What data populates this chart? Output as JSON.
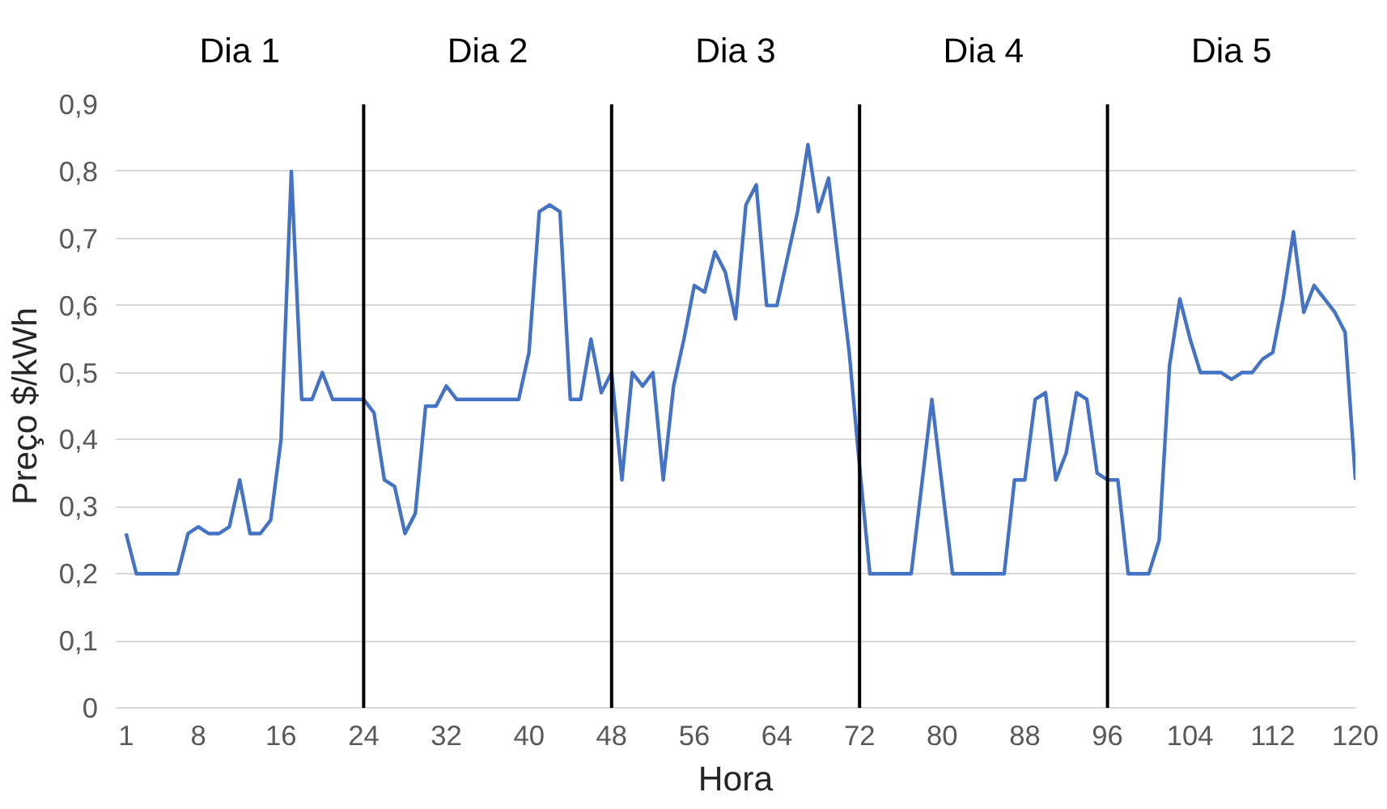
{
  "chart_data": {
    "type": "line",
    "xlabel": "Hora",
    "ylabel": "Preço $/kWh",
    "x": [
      1,
      2,
      3,
      4,
      5,
      6,
      7,
      8,
      9,
      10,
      11,
      12,
      13,
      14,
      15,
      16,
      17,
      18,
      19,
      20,
      21,
      22,
      23,
      24,
      25,
      26,
      27,
      28,
      29,
      30,
      31,
      32,
      33,
      34,
      35,
      36,
      37,
      38,
      39,
      40,
      41,
      42,
      43,
      44,
      45,
      46,
      47,
      48,
      49,
      50,
      51,
      52,
      53,
      54,
      55,
      56,
      57,
      58,
      59,
      60,
      61,
      62,
      63,
      64,
      65,
      66,
      67,
      68,
      69,
      70,
      71,
      72,
      73,
      74,
      75,
      76,
      77,
      78,
      79,
      80,
      81,
      82,
      83,
      84,
      85,
      86,
      87,
      88,
      89,
      90,
      91,
      92,
      93,
      94,
      95,
      96,
      97,
      98,
      99,
      100,
      101,
      102,
      103,
      104,
      105,
      106,
      107,
      108,
      109,
      110,
      111,
      112,
      113,
      114,
      115,
      116,
      117,
      118,
      119,
      120
    ],
    "series": [
      {
        "color": "#4472c4",
        "values": [
          0.26,
          0.2,
          0.2,
          0.2,
          0.2,
          0.2,
          0.26,
          0.27,
          0.26,
          0.26,
          0.27,
          0.34,
          0.26,
          0.26,
          0.28,
          0.4,
          0.8,
          0.46,
          0.46,
          0.5,
          0.46,
          0.46,
          0.46,
          0.46,
          0.44,
          0.34,
          0.33,
          0.26,
          0.29,
          0.45,
          0.45,
          0.48,
          0.46,
          0.46,
          0.46,
          0.46,
          0.46,
          0.46,
          0.46,
          0.53,
          0.74,
          0.75,
          0.74,
          0.46,
          0.46,
          0.55,
          0.47,
          0.5,
          0.34,
          0.5,
          0.48,
          0.5,
          0.34,
          0.48,
          0.55,
          0.63,
          0.62,
          0.68,
          0.65,
          0.58,
          0.75,
          0.78,
          0.6,
          0.6,
          0.67,
          0.74,
          0.84,
          0.74,
          0.79,
          0.66,
          0.53,
          0.36,
          0.2,
          0.2,
          0.2,
          0.2,
          0.2,
          0.33,
          0.46,
          0.33,
          0.2,
          0.2,
          0.2,
          0.2,
          0.2,
          0.2,
          0.34,
          0.34,
          0.46,
          0.47,
          0.34,
          0.38,
          0.47,
          0.46,
          0.35,
          0.34,
          0.34,
          0.2,
          0.2,
          0.2,
          0.25,
          0.51,
          0.61,
          0.55,
          0.5,
          0.5,
          0.5,
          0.49,
          0.5,
          0.5,
          0.52,
          0.53,
          0.61,
          0.71,
          0.59,
          0.63,
          0.61,
          0.59,
          0.56,
          0.34
        ]
      }
    ],
    "xlim": [
      0,
      120
    ],
    "xticks": [
      1,
      8,
      16,
      24,
      32,
      40,
      48,
      56,
      64,
      72,
      80,
      88,
      96,
      104,
      112,
      120
    ],
    "ylim": [
      0,
      0.9
    ],
    "yticks": [
      {
        "value": 0,
        "label": "0"
      },
      {
        "value": 0.1,
        "label": "0,1"
      },
      {
        "value": 0.2,
        "label": "0,2"
      },
      {
        "value": 0.3,
        "label": "0,3"
      },
      {
        "value": 0.4,
        "label": "0,4"
      },
      {
        "value": 0.5,
        "label": "0,5"
      },
      {
        "value": 0.6,
        "label": "0,6"
      },
      {
        "value": 0.7,
        "label": "0,7"
      },
      {
        "value": 0.8,
        "label": "0,8"
      },
      {
        "value": 0.9,
        "label": "0,9"
      }
    ],
    "grid": "y",
    "marker": "none",
    "line_style": "solid",
    "ref_lines": [
      {
        "axis": "x",
        "value": 24,
        "color": "#000000"
      },
      {
        "axis": "x",
        "value": 48,
        "color": "#000000"
      },
      {
        "axis": "x",
        "value": 72,
        "color": "#000000"
      },
      {
        "axis": "x",
        "value": 96,
        "color": "#000000"
      }
    ],
    "annotations": [
      "Dia 1",
      "Dia 2",
      "Dia 3",
      "Dia 4",
      "Dia 5"
    ]
  }
}
